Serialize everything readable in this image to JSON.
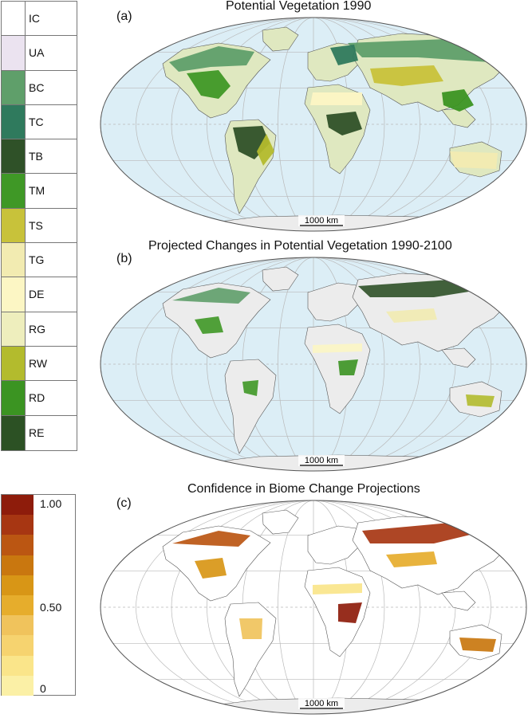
{
  "biome_legend": [
    {
      "code": "IC",
      "color": "#ffffff"
    },
    {
      "code": "UA",
      "color": "#ebe3f0"
    },
    {
      "code": "BC",
      "color": "#5f9f6a"
    },
    {
      "code": "TC",
      "color": "#2f7a5d"
    },
    {
      "code": "TB",
      "color": "#2f5128"
    },
    {
      "code": "TM",
      "color": "#3f9826"
    },
    {
      "code": "TS",
      "color": "#c8c23a"
    },
    {
      "code": "TG",
      "color": "#f2ebb1"
    },
    {
      "code": "DE",
      "color": "#fcf6c4"
    },
    {
      "code": "RG",
      "color": "#eeeebd"
    },
    {
      "code": "RW",
      "color": "#b3bb2d"
    },
    {
      "code": "RD",
      "color": "#3b9422"
    },
    {
      "code": "RE",
      "color": "#2c5124"
    }
  ],
  "confidence_legend": {
    "ticks": [
      "1.00",
      "0.50",
      "0"
    ],
    "colors": [
      "#8e1c0b",
      "#a73612",
      "#bb5612",
      "#c9770f",
      "#d89616",
      "#e6ad2c",
      "#f0c35c",
      "#f6d36f",
      "#fae58a",
      "#fbf0a6"
    ]
  },
  "panels": [
    {
      "letter": "(a)",
      "title": "Potential Vegetation 1990",
      "scale": "1000 km"
    },
    {
      "letter": "(b)",
      "title": "Projected Changes in Potential Vegetation 1990-2100",
      "scale": "1000 km"
    },
    {
      "letter": "(c)",
      "title": "Confidence in Biome Change Projections",
      "scale": "1000 km"
    }
  ],
  "colors": {
    "ocean": "#dceef6",
    "land_neutral": "#ececec",
    "grid": "#b9b9b9",
    "coast": "#555555"
  }
}
